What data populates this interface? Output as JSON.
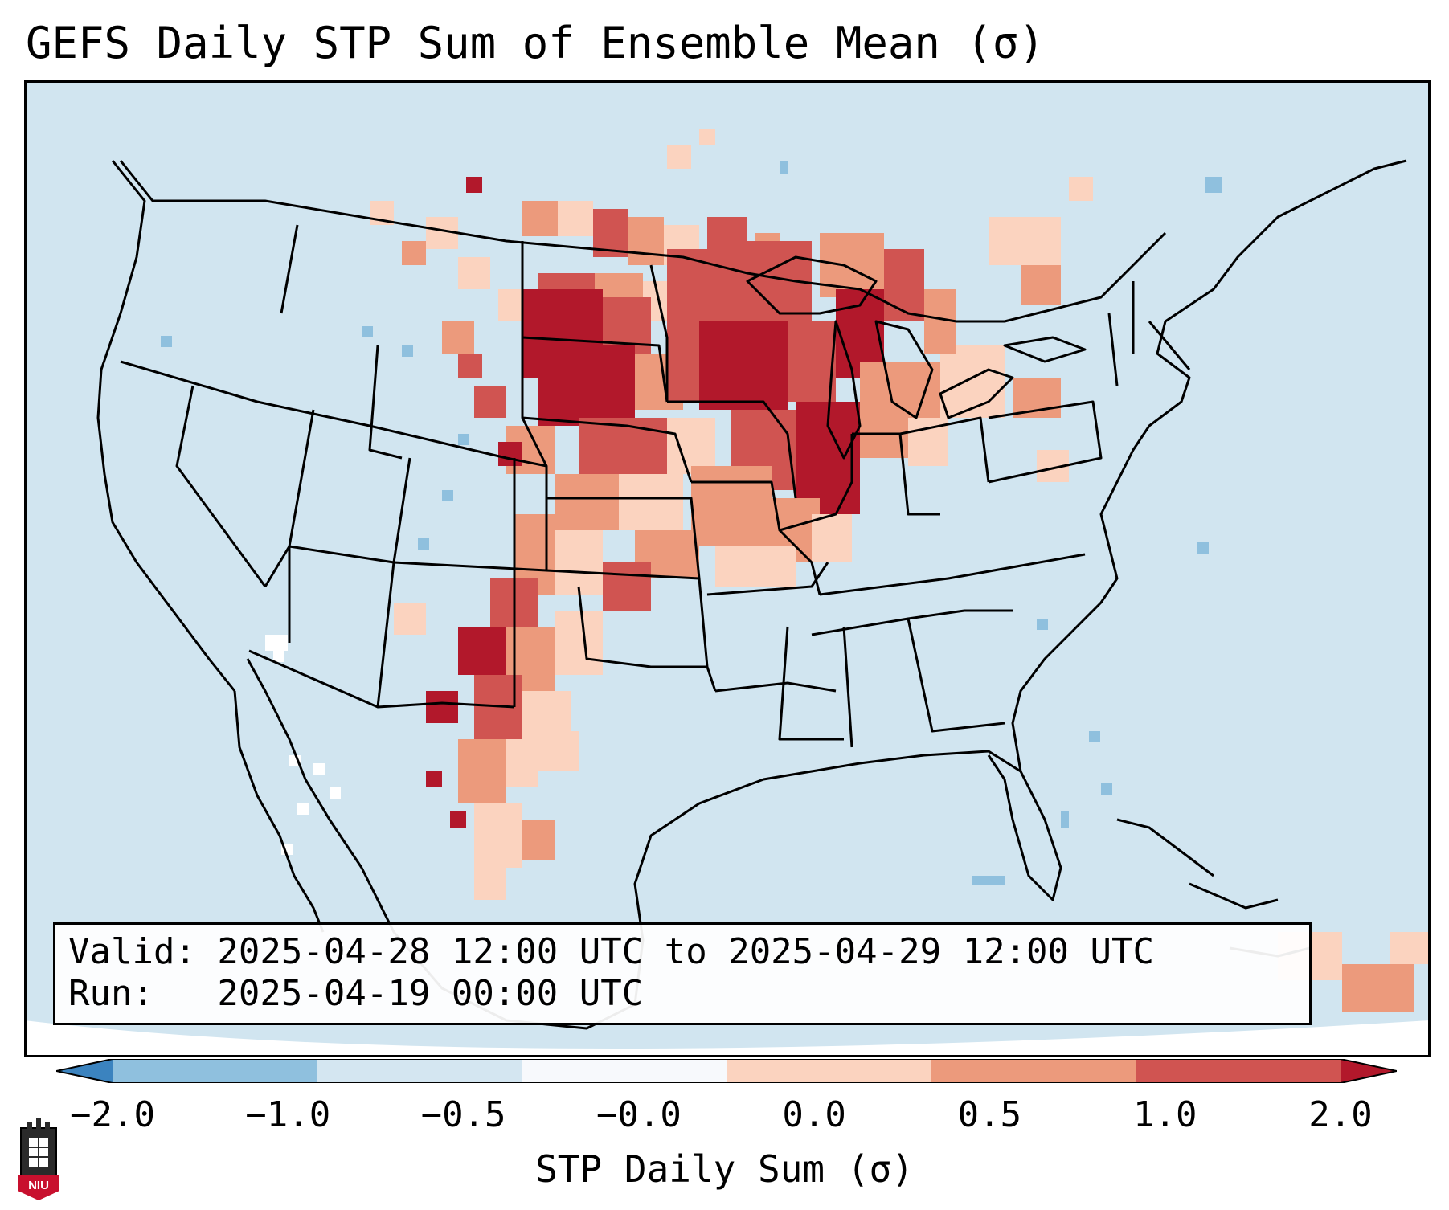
{
  "title": "GEFS Daily STP Sum of Ensemble Mean (σ)",
  "info": {
    "valid_line": "Valid: 2025-04-28 12:00 UTC to 2025-04-29 12:00 UTC",
    "run_line": "Run:   2025-04-19 00:00 UTC"
  },
  "colorbar": {
    "label": "STP Daily Sum (σ)",
    "ticks": [
      "−2.0",
      "−1.0",
      "−0.5",
      "−0.0",
      "0.0",
      "0.5",
      "1.0",
      "2.0"
    ],
    "colors": [
      "#3b83bf",
      "#8fc0de",
      "#d4e6f1",
      "#f7f9fc",
      "#fbd3bf",
      "#ec9a7c",
      "#d05451",
      "#b2182b"
    ]
  },
  "colors": {
    "ocean": "#d1e5f0",
    "low": "#fbd3bf",
    "mid": "#ec9a7c",
    "high": "#d05451",
    "max": "#b2182b",
    "negative": "#8fc0de"
  },
  "logo": {
    "text": "NIU"
  }
}
